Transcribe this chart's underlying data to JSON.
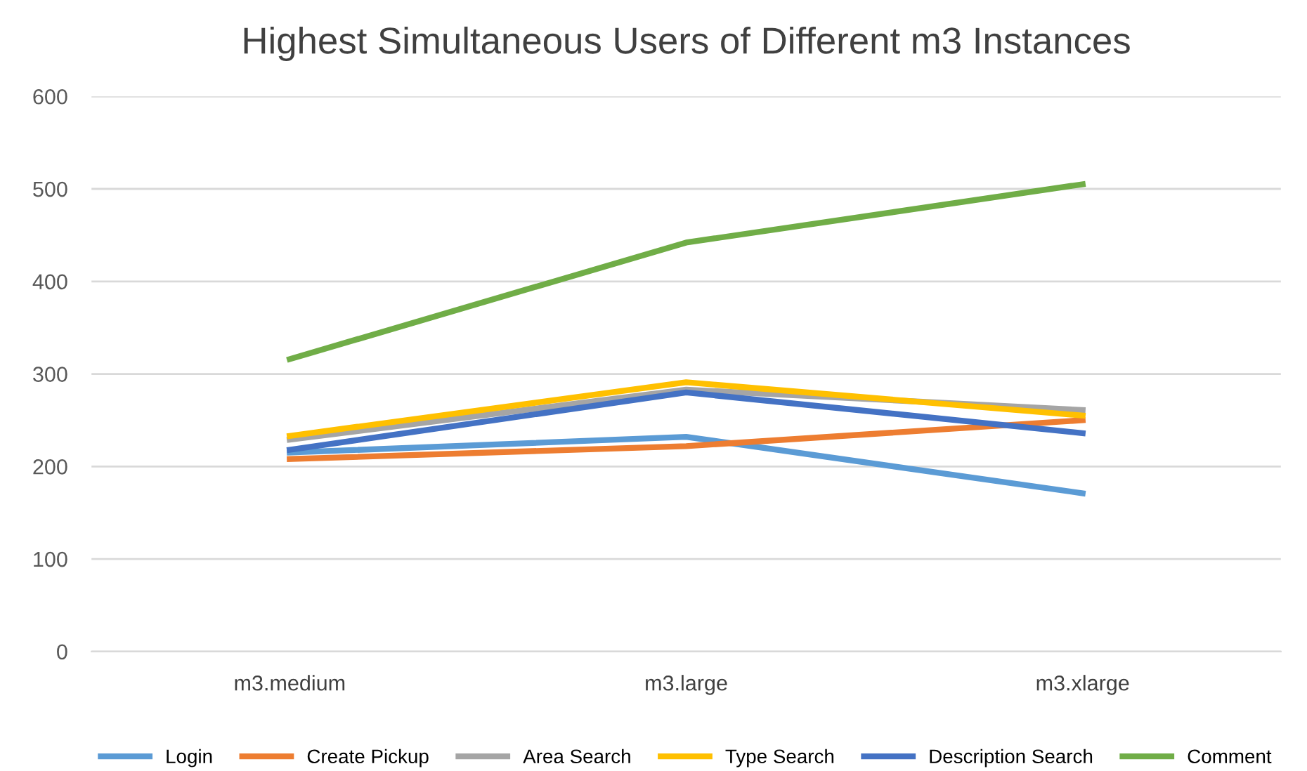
{
  "chart_data": {
    "type": "line",
    "title": "Highest Simultaneous Users of Different m3 Instances",
    "categories": [
      "m3.medium",
      "m3.large",
      "m3.xlarge"
    ],
    "series": [
      {
        "name": "Login",
        "color": "#5b9bd5",
        "values": [
          215,
          232,
          171
        ]
      },
      {
        "name": "Create Pickup",
        "color": "#ed7d31",
        "values": [
          208,
          222,
          250
        ]
      },
      {
        "name": "Area Search",
        "color": "#a5a5a5",
        "values": [
          229,
          283,
          261
        ]
      },
      {
        "name": "Type Search",
        "color": "#ffc000",
        "values": [
          233,
          291,
          255
        ]
      },
      {
        "name": "Description Search",
        "color": "#4472c4",
        "values": [
          218,
          280,
          236
        ]
      },
      {
        "name": "Comment",
        "color": "#70ad47",
        "values": [
          316,
          442,
          505
        ]
      }
    ],
    "ylim": [
      0,
      600
    ],
    "yticks": [
      0,
      100,
      200,
      300,
      400,
      500,
      600
    ],
    "grid": "y",
    "legend": "bottom",
    "marker": "none",
    "line_style": "solid"
  }
}
